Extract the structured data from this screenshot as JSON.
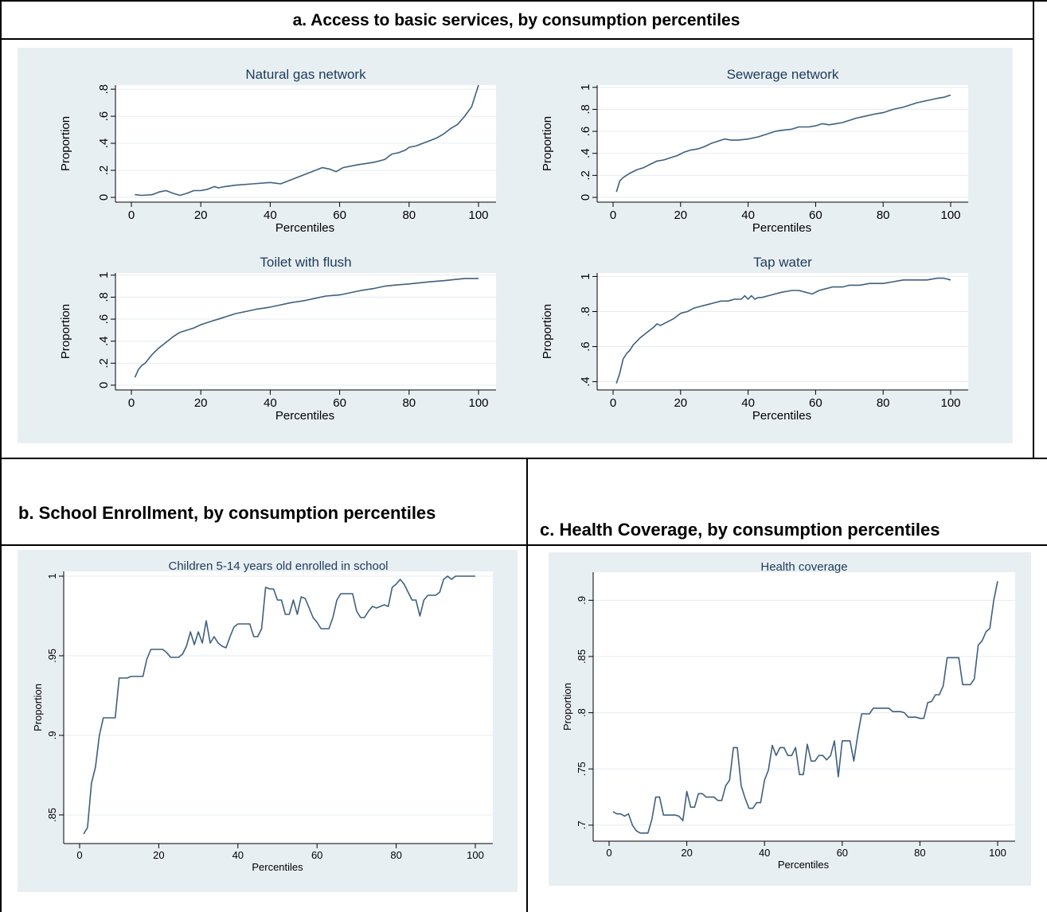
{
  "panels": {
    "a_title": "a. Access to basic services, by consumption percentiles",
    "b_title": "b. School Enrollment, by consumption percentiles",
    "c_title": "c.  Health Coverage, by consumption percentiles"
  },
  "colors": {
    "line": "#3f5f7f",
    "plot_bg": "#e8eff3",
    "grid": "#ffffff",
    "axis": "#000000",
    "title": "#1e3a5a"
  },
  "chart_data": [
    {
      "id": "gas",
      "type": "line",
      "title": "Natural gas network",
      "xlabel": "Percentiles",
      "ylabel": "Proportion",
      "xlim": [
        0,
        100
      ],
      "ylim": [
        0,
        0.83
      ],
      "xticks": [
        0,
        20,
        40,
        60,
        80,
        100
      ],
      "xtick_labels": [
        "0",
        "20",
        "40",
        "60",
        "80",
        "100"
      ],
      "yticks": [
        0,
        0.2,
        0.4,
        0.6,
        0.8
      ],
      "ytick_labels": [
        "0",
        ".2",
        ".4",
        ".6",
        ".8"
      ],
      "x": [
        1,
        3,
        6,
        8,
        10,
        12,
        14,
        16,
        18,
        20,
        22,
        24,
        25,
        27,
        30,
        35,
        40,
        43,
        45,
        47,
        50,
        52,
        55,
        57,
        59,
        61,
        65,
        70,
        73,
        75,
        77,
        79,
        80,
        82,
        84,
        86,
        88,
        90,
        92,
        94,
        96,
        98,
        100
      ],
      "y": [
        0.02,
        0.015,
        0.02,
        0.04,
        0.05,
        0.03,
        0.015,
        0.03,
        0.05,
        0.05,
        0.06,
        0.08,
        0.07,
        0.08,
        0.09,
        0.1,
        0.11,
        0.1,
        0.12,
        0.14,
        0.17,
        0.19,
        0.22,
        0.21,
        0.19,
        0.22,
        0.24,
        0.26,
        0.28,
        0.32,
        0.33,
        0.35,
        0.37,
        0.38,
        0.4,
        0.42,
        0.44,
        0.47,
        0.51,
        0.54,
        0.6,
        0.67,
        0.83
      ]
    },
    {
      "id": "sewer",
      "type": "line",
      "title": "Sewerage network",
      "xlabel": "Percentiles",
      "ylabel": "Proportion",
      "xlim": [
        0,
        100
      ],
      "ylim": [
        0,
        1.02
      ],
      "xticks": [
        0,
        20,
        40,
        60,
        80,
        100
      ],
      "xtick_labels": [
        "0",
        "20",
        "40",
        "60",
        "80",
        "100"
      ],
      "yticks": [
        0,
        0.2,
        0.4,
        0.6,
        0.8,
        1
      ],
      "ytick_labels": [
        "0",
        ".2",
        ".4",
        ".6",
        ".8",
        "1"
      ],
      "x": [
        1,
        2,
        3,
        5,
        7,
        9,
        11,
        13,
        15,
        17,
        19,
        21,
        23,
        25,
        27,
        29,
        31,
        33,
        35,
        37,
        40,
        43,
        45,
        48,
        50,
        53,
        55,
        58,
        60,
        62,
        64,
        66,
        68,
        70,
        72,
        75,
        78,
        80,
        83,
        86,
        88,
        90,
        93,
        96,
        98,
        100
      ],
      "y": [
        0.05,
        0.15,
        0.18,
        0.22,
        0.25,
        0.27,
        0.3,
        0.33,
        0.34,
        0.36,
        0.38,
        0.41,
        0.43,
        0.44,
        0.46,
        0.49,
        0.51,
        0.53,
        0.52,
        0.52,
        0.53,
        0.55,
        0.57,
        0.6,
        0.61,
        0.62,
        0.64,
        0.64,
        0.65,
        0.67,
        0.66,
        0.67,
        0.68,
        0.7,
        0.72,
        0.74,
        0.76,
        0.77,
        0.8,
        0.82,
        0.84,
        0.86,
        0.88,
        0.9,
        0.91,
        0.93
      ]
    },
    {
      "id": "toilet",
      "type": "line",
      "title": "Toilet with flush",
      "xlabel": "Percentiles",
      "ylabel": "Proportion",
      "xlim": [
        0,
        100
      ],
      "ylim": [
        0,
        1.02
      ],
      "xticks": [
        0,
        20,
        40,
        60,
        80,
        100
      ],
      "xtick_labels": [
        "0",
        "20",
        "40",
        "60",
        "80",
        "100"
      ],
      "yticks": [
        0,
        0.2,
        0.4,
        0.6,
        0.8,
        1
      ],
      "ytick_labels": [
        "0",
        ".2",
        ".4",
        ".6",
        ".8",
        "1"
      ],
      "x": [
        1,
        2,
        3,
        4,
        5,
        6,
        7,
        8,
        10,
        12,
        14,
        16,
        18,
        20,
        23,
        26,
        28,
        30,
        33,
        36,
        40,
        43,
        46,
        50,
        53,
        56,
        60,
        63,
        66,
        70,
        73,
        76,
        80,
        83,
        86,
        90,
        93,
        96,
        98,
        100
      ],
      "y": [
        0.07,
        0.14,
        0.18,
        0.2,
        0.24,
        0.28,
        0.31,
        0.34,
        0.39,
        0.44,
        0.48,
        0.5,
        0.52,
        0.55,
        0.58,
        0.61,
        0.63,
        0.65,
        0.67,
        0.69,
        0.71,
        0.73,
        0.75,
        0.77,
        0.79,
        0.81,
        0.82,
        0.84,
        0.86,
        0.88,
        0.9,
        0.91,
        0.92,
        0.93,
        0.94,
        0.95,
        0.96,
        0.97,
        0.97,
        0.97
      ]
    },
    {
      "id": "tap",
      "type": "line",
      "title": "Tap water",
      "xlabel": "Percentiles",
      "ylabel": "Proportion",
      "xlim": [
        0,
        100
      ],
      "ylim": [
        0.38,
        1.02
      ],
      "xticks": [
        0,
        20,
        40,
        60,
        80,
        100
      ],
      "xtick_labels": [
        "0",
        "20",
        "40",
        "60",
        "80",
        "100"
      ],
      "yticks": [
        0.4,
        0.6,
        0.8,
        1
      ],
      "ytick_labels": [
        ".4",
        ".6",
        ".8",
        "1"
      ],
      "x": [
        1,
        2,
        3,
        4,
        5,
        6,
        7,
        8,
        10,
        12,
        13,
        14,
        16,
        18,
        20,
        22,
        24,
        26,
        28,
        30,
        32,
        34,
        36,
        38,
        39,
        40,
        41,
        42,
        43,
        44,
        46,
        48,
        50,
        53,
        55,
        57,
        59,
        61,
        63,
        65,
        68,
        70,
        73,
        76,
        80,
        83,
        86,
        90,
        93,
        96,
        98,
        100
      ],
      "y": [
        0.39,
        0.45,
        0.53,
        0.56,
        0.58,
        0.61,
        0.63,
        0.65,
        0.68,
        0.71,
        0.73,
        0.72,
        0.74,
        0.76,
        0.79,
        0.8,
        0.82,
        0.83,
        0.84,
        0.85,
        0.86,
        0.86,
        0.87,
        0.87,
        0.89,
        0.87,
        0.89,
        0.87,
        0.88,
        0.88,
        0.89,
        0.9,
        0.91,
        0.92,
        0.92,
        0.91,
        0.9,
        0.92,
        0.93,
        0.94,
        0.94,
        0.95,
        0.95,
        0.96,
        0.96,
        0.97,
        0.98,
        0.98,
        0.98,
        0.99,
        0.99,
        0.98
      ]
    },
    {
      "id": "school",
      "type": "line",
      "title": "Children 5-14 years old enrolled in school",
      "xlabel": "Percentiles",
      "ylabel": "Proportion",
      "xlim": [
        0,
        100
      ],
      "ylim": [
        0.835,
        1.003
      ],
      "xticks": [
        0,
        20,
        40,
        60,
        80,
        100
      ],
      "xtick_labels": [
        "0",
        "20",
        "40",
        "60",
        "80",
        "100"
      ],
      "yticks": [
        0.85,
        0.9,
        0.95,
        1
      ],
      "ytick_labels": [
        ".85",
        ".9",
        ".95",
        "1"
      ],
      "x": [
        1,
        2,
        3,
        4,
        5,
        6,
        7,
        8,
        9,
        10,
        11,
        12,
        13,
        14,
        15,
        16,
        17,
        18,
        19,
        20,
        21,
        22,
        23,
        24,
        25,
        26,
        27,
        28,
        29,
        30,
        31,
        32,
        33,
        34,
        35,
        36,
        37,
        38,
        39,
        40,
        41,
        42,
        43,
        44,
        45,
        46,
        47,
        48,
        49,
        50,
        51,
        52,
        53,
        54,
        55,
        56,
        57,
        58,
        59,
        60,
        61,
        62,
        63,
        64,
        65,
        66,
        67,
        68,
        69,
        70,
        71,
        72,
        73,
        74,
        75,
        76,
        77,
        78,
        79,
        80,
        81,
        82,
        83,
        84,
        85,
        86,
        87,
        88,
        89,
        90,
        91,
        92,
        93,
        94,
        95,
        96,
        97,
        98,
        99,
        100
      ],
      "y": [
        0.838,
        0.842,
        0.87,
        0.88,
        0.9,
        0.911,
        0.911,
        0.911,
        0.911,
        0.936,
        0.936,
        0.936,
        0.937,
        0.937,
        0.937,
        0.937,
        0.948,
        0.954,
        0.954,
        0.954,
        0.954,
        0.952,
        0.949,
        0.949,
        0.949,
        0.951,
        0.956,
        0.965,
        0.957,
        0.965,
        0.958,
        0.972,
        0.958,
        0.962,
        0.958,
        0.956,
        0.955,
        0.962,
        0.968,
        0.97,
        0.97,
        0.97,
        0.97,
        0.962,
        0.962,
        0.967,
        0.993,
        0.992,
        0.992,
        0.985,
        0.985,
        0.976,
        0.976,
        0.985,
        0.976,
        0.987,
        0.986,
        0.98,
        0.974,
        0.971,
        0.967,
        0.967,
        0.967,
        0.974,
        0.985,
        0.989,
        0.989,
        0.989,
        0.989,
        0.978,
        0.974,
        0.974,
        0.978,
        0.981,
        0.98,
        0.981,
        0.982,
        0.981,
        0.993,
        0.995,
        0.998,
        0.995,
        0.99,
        0.985,
        0.985,
        0.975,
        0.985,
        0.988,
        0.988,
        0.988,
        0.99,
        0.998,
        1.0,
        0.998,
        1.0,
        1.0,
        1.0,
        1.0,
        1.0,
        1.0
      ]
    },
    {
      "id": "health",
      "type": "line",
      "title": "Health coverage",
      "xlabel": "Percentiles",
      "ylabel": "Proportion",
      "xlim": [
        0,
        100
      ],
      "ylim": [
        0.69,
        0.925
      ],
      "xticks": [
        0,
        20,
        40,
        60,
        80,
        100
      ],
      "xtick_labels": [
        "0",
        "20",
        "40",
        "60",
        "80",
        "100"
      ],
      "yticks": [
        0.7,
        0.75,
        0.8,
        0.85,
        0.9
      ],
      "ytick_labels": [
        ".7",
        ".75",
        ".8",
        ".85",
        ".9"
      ],
      "x": [
        1,
        2,
        3,
        4,
        5,
        6,
        7,
        8,
        9,
        10,
        11,
        12,
        13,
        14,
        15,
        16,
        17,
        18,
        19,
        20,
        21,
        22,
        23,
        24,
        25,
        26,
        27,
        28,
        29,
        30,
        31,
        32,
        33,
        34,
        35,
        36,
        37,
        38,
        39,
        40,
        41,
        42,
        43,
        44,
        45,
        46,
        47,
        48,
        49,
        50,
        51,
        52,
        53,
        54,
        55,
        56,
        57,
        58,
        59,
        60,
        61,
        62,
        63,
        64,
        65,
        66,
        67,
        68,
        69,
        70,
        71,
        72,
        73,
        74,
        75,
        76,
        77,
        78,
        79,
        80,
        81,
        82,
        83,
        84,
        85,
        86,
        87,
        88,
        89,
        90,
        91,
        92,
        93,
        94,
        95,
        96,
        97,
        98,
        99,
        100
      ],
      "y": [
        0.712,
        0.71,
        0.71,
        0.708,
        0.71,
        0.7,
        0.695,
        0.693,
        0.693,
        0.693,
        0.705,
        0.725,
        0.725,
        0.709,
        0.709,
        0.709,
        0.709,
        0.708,
        0.704,
        0.73,
        0.716,
        0.716,
        0.728,
        0.728,
        0.725,
        0.725,
        0.725,
        0.722,
        0.722,
        0.735,
        0.74,
        0.769,
        0.769,
        0.735,
        0.724,
        0.715,
        0.715,
        0.72,
        0.72,
        0.74,
        0.749,
        0.771,
        0.762,
        0.769,
        0.769,
        0.762,
        0.762,
        0.769,
        0.745,
        0.745,
        0.772,
        0.757,
        0.757,
        0.762,
        0.762,
        0.758,
        0.762,
        0.775,
        0.743,
        0.775,
        0.775,
        0.775,
        0.757,
        0.78,
        0.799,
        0.799,
        0.799,
        0.804,
        0.804,
        0.804,
        0.804,
        0.804,
        0.801,
        0.801,
        0.801,
        0.8,
        0.796,
        0.796,
        0.796,
        0.795,
        0.795,
        0.809,
        0.81,
        0.816,
        0.816,
        0.824,
        0.849,
        0.849,
        0.849,
        0.849,
        0.825,
        0.825,
        0.825,
        0.83,
        0.86,
        0.864,
        0.872,
        0.875,
        0.9,
        0.917
      ]
    }
  ]
}
